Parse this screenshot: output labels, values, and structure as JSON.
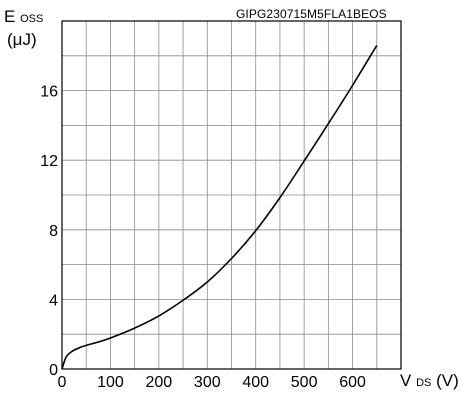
{
  "doc_id": "GIPG230715M5FLA1BEOS",
  "chart_data": {
    "type": "line",
    "ylabel": {
      "main": "E",
      "sub": "OSS",
      "unit": "(μJ)"
    },
    "xlabel": {
      "main": "V",
      "sub": "DS",
      "unit": "(V)"
    },
    "xlim": [
      0,
      700
    ],
    "ylim": [
      0,
      20
    ],
    "x_ticks": [
      0,
      100,
      200,
      300,
      400,
      500,
      600
    ],
    "y_ticks": [
      0,
      4,
      8,
      12,
      16
    ],
    "x_grid_step": 50,
    "y_grid_step": 2,
    "grid": true,
    "series": [
      {
        "x": [
          0,
          5,
          10,
          20,
          30,
          40,
          50,
          75,
          100,
          150,
          200,
          250,
          300,
          350,
          400,
          450,
          500,
          550,
          600,
          650
        ],
        "y": [
          0,
          0.45,
          0.75,
          1.0,
          1.15,
          1.27,
          1.36,
          1.55,
          1.78,
          2.35,
          3.05,
          3.95,
          5.0,
          6.35,
          7.95,
          9.85,
          11.95,
          14.1,
          16.3,
          18.6
        ]
      }
    ]
  }
}
